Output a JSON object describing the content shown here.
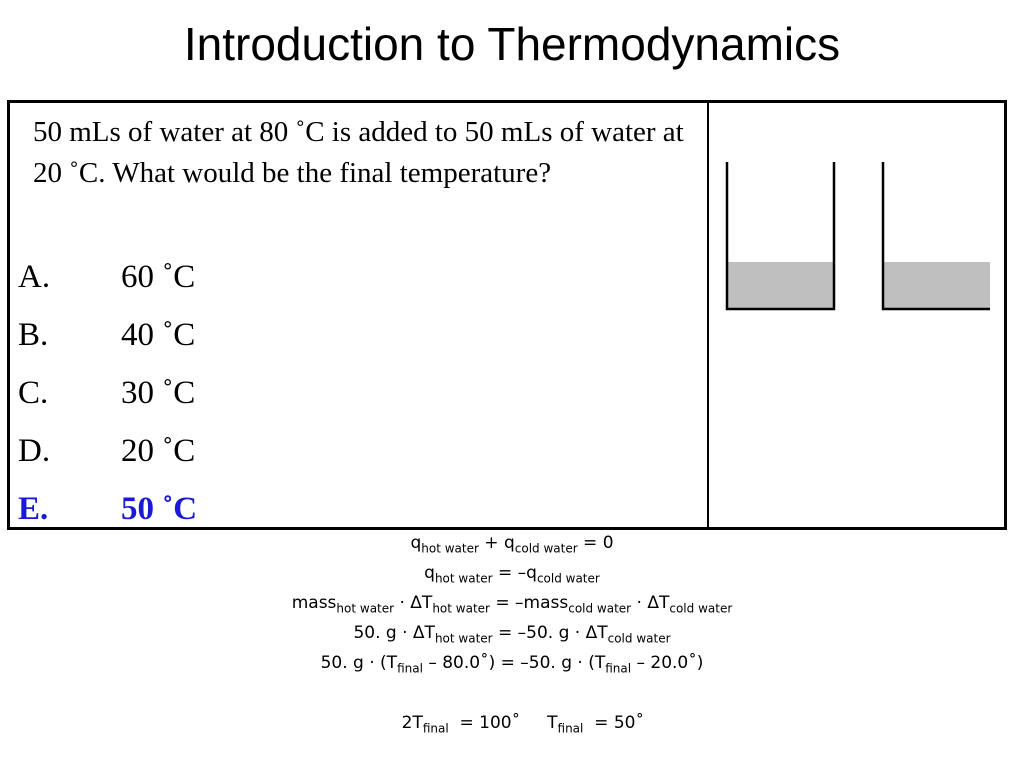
{
  "title": "Introduction to Thermodynamics",
  "question": "50 mLs of water at 80 ˚C is added to 50 mLs of water at 20 ˚C. What would be the final temperature?",
  "options": [
    {
      "letter": "A.",
      "value": "60 ˚C",
      "correct": false
    },
    {
      "letter": "B.",
      "value": "40 ˚C",
      "correct": false
    },
    {
      "letter": "C.",
      "value": "30 ˚C",
      "correct": false
    },
    {
      "letter": "D.",
      "value": "20 ˚C",
      "correct": false
    },
    {
      "letter": "E.",
      "value": "50 ˚C",
      "correct": true
    }
  ],
  "colors": {
    "correct_answer": "#1a1ad6",
    "water_fill": "#bfbfbf"
  },
  "solution": {
    "line1": {
      "a": "q",
      "a_sub": "hot water",
      "b": " + q",
      "b_sub": "cold water",
      "c": " = 0"
    },
    "line2": {
      "a": "q",
      "a_sub": "hot water",
      "b": " = –q",
      "b_sub": "cold water"
    },
    "line3": {
      "a": "mass",
      "a_sub": "hot water",
      "b": " · ΔT",
      "b_sub": "hot water",
      "c": " = –mass",
      "c_sub": "cold water",
      "d": " · ΔT",
      "d_sub": "cold water"
    },
    "line4": {
      "a": "50. g · ΔT",
      "a_sub": "hot water",
      "b": " = –50. g · ΔT",
      "b_sub": "cold water"
    },
    "line5": {
      "a": "50. g · (T",
      "a_sub": "final",
      "b": " – 80.0˚) = –50. g · (T",
      "b_sub": "final",
      "c": " – 20.0˚)"
    },
    "line6": {
      "a": "2T",
      "a_sub": "final",
      "b": "  = 100˚     T",
      "b_sub": "final",
      "c": "  = 50˚"
    }
  }
}
